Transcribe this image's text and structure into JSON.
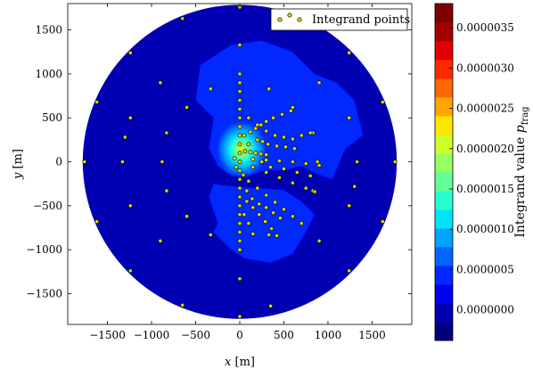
{
  "chart_data": {
    "type": "heatmap",
    "title": "",
    "xlabel": "x [m]",
    "ylabel": "y [m]",
    "xlim": [
      -1950,
      1950
    ],
    "ylim": [
      -1850,
      1800
    ],
    "x_ticks": [
      -1500,
      -1000,
      -500,
      0,
      500,
      1000,
      1500
    ],
    "x_tick_labels": [
      "−1500",
      "−1000",
      "−500",
      "0",
      "500",
      "1000",
      "1500"
    ],
    "y_ticks": [
      -1500,
      -1000,
      -500,
      0,
      500,
      1000,
      1500
    ],
    "y_tick_labels": [
      "−1500",
      "−1000",
      "−500",
      "0",
      "500",
      "1000",
      "1500"
    ],
    "domain_radius": 1780,
    "hotspot": {
      "x": 20,
      "y": 140
    },
    "legend": {
      "label": "Integrand points",
      "placement": "top-right"
    },
    "colorbar": {
      "label": "Integrand value p",
      "label_subscript": "frag",
      "range": [
        -3.8e-07,
        3.8e-06
      ],
      "ticks": [
        0.0,
        5e-07,
        1e-06,
        1.5e-06,
        2e-06,
        2.5e-06,
        3e-06,
        3.5e-06
      ],
      "tick_labels": [
        "0.0000000",
        "0.0000005",
        "0.0000010",
        "0.0000015",
        "0.0000020",
        "0.0000025",
        "0.0000030",
        "0.0000035"
      ],
      "colors": [
        "#00007f",
        "#0000b2",
        "#0000f1",
        "#0028ff",
        "#0066ff",
        "#00a4ff",
        "#00e4f8",
        "#29ffce",
        "#61ff96",
        "#96ff61",
        "#ceff29",
        "#ffe600",
        "#ffa700",
        "#ff6800",
        "#ff2900",
        "#e40000",
        "#a40000",
        "#7f0000"
      ]
    },
    "points": [
      [
        0,
        1760
      ],
      [
        0,
        1330
      ],
      [
        0,
        -1330
      ],
      [
        0,
        -1760
      ],
      [
        -650,
        1630
      ],
      [
        650,
        1630
      ],
      [
        -1240,
        1240
      ],
      [
        1240,
        1240
      ],
      [
        -1620,
        680
      ],
      [
        1620,
        680
      ],
      [
        -1760,
        0
      ],
      [
        1760,
        0
      ],
      [
        -1620,
        -680
      ],
      [
        1620,
        -680
      ],
      [
        -1240,
        -1240
      ],
      [
        1240,
        -1240
      ],
      [
        -650,
        -1630
      ],
      [
        350,
        -1640
      ],
      [
        -900,
        900
      ],
      [
        900,
        900
      ],
      [
        -1240,
        500
      ],
      [
        1240,
        500
      ],
      [
        -1330,
        0
      ],
      [
        1330,
        0
      ],
      [
        -1240,
        -500
      ],
      [
        1240,
        -500
      ],
      [
        -900,
        -900
      ],
      [
        900,
        -900
      ],
      [
        -600,
        620
      ],
      [
        600,
        620
      ],
      [
        -830,
        330
      ],
      [
        830,
        330
      ],
      [
        -880,
        0
      ],
      [
        880,
        0
      ],
      [
        -830,
        -330
      ],
      [
        830,
        -330
      ],
      [
        -600,
        -620
      ],
      [
        600,
        -620
      ],
      [
        -330,
        -830
      ],
      [
        330,
        -830
      ],
      [
        -330,
        830
      ],
      [
        330,
        830
      ],
      [
        -1300,
        280
      ],
      [
        1300,
        -280
      ],
      [
        0,
        1000
      ],
      [
        0,
        900
      ],
      [
        0,
        800
      ],
      [
        0,
        700
      ],
      [
        0,
        600
      ],
      [
        0,
        500
      ],
      [
        0,
        400
      ],
      [
        0,
        300
      ],
      [
        0,
        200
      ],
      [
        0,
        100
      ],
      [
        0,
        0
      ],
      [
        0,
        -100
      ],
      [
        0,
        -200
      ],
      [
        0,
        -300
      ],
      [
        0,
        -400
      ],
      [
        0,
        -500
      ],
      [
        0,
        -600
      ],
      [
        0,
        -700
      ],
      [
        0,
        -800
      ],
      [
        0,
        -900
      ],
      [
        0,
        -1000
      ],
      [
        60,
        120
      ],
      [
        120,
        110
      ],
      [
        180,
        100
      ],
      [
        240,
        90
      ],
      [
        300,
        80
      ],
      [
        100,
        500
      ],
      [
        200,
        420
      ],
      [
        300,
        350
      ],
      [
        400,
        300
      ],
      [
        500,
        280
      ],
      [
        600,
        260
      ],
      [
        700,
        300
      ],
      [
        800,
        330
      ],
      [
        50,
        300
      ],
      [
        120,
        340
      ],
      [
        180,
        380
      ],
      [
        240,
        420
      ],
      [
        300,
        460
      ],
      [
        380,
        500
      ],
      [
        480,
        540
      ],
      [
        580,
        580
      ],
      [
        150,
        30
      ],
      [
        300,
        20
      ],
      [
        450,
        10
      ],
      [
        600,
        0
      ],
      [
        750,
        -20
      ],
      [
        900,
        -40
      ],
      [
        150,
        -60
      ],
      [
        300,
        -120
      ],
      [
        450,
        -180
      ],
      [
        600,
        -240
      ],
      [
        750,
        -300
      ],
      [
        850,
        -340
      ],
      [
        100,
        -220
      ],
      [
        200,
        -300
      ],
      [
        300,
        -380
      ],
      [
        400,
        -460
      ],
      [
        500,
        -540
      ],
      [
        600,
        -620
      ],
      [
        700,
        -700
      ],
      [
        80,
        -450
      ],
      [
        150,
        -520
      ],
      [
        220,
        -600
      ],
      [
        290,
        -680
      ],
      [
        360,
        -760
      ],
      [
        420,
        -840
      ],
      [
        50,
        -600
      ],
      [
        100,
        -700
      ],
      [
        150,
        -820
      ],
      [
        250,
        0
      ],
      [
        350,
        -60
      ],
      [
        500,
        -80
      ],
      [
        650,
        -120
      ],
      [
        800,
        -160
      ],
      [
        100,
        200
      ],
      [
        200,
        250
      ],
      [
        260,
        230
      ],
      [
        320,
        200
      ],
      [
        420,
        180
      ],
      [
        520,
        170
      ],
      [
        620,
        150
      ],
      [
        -40,
        -60
      ],
      [
        -60,
        40
      ],
      [
        40,
        -150
      ],
      [
        80,
        -330
      ],
      [
        140,
        -420
      ],
      [
        220,
        -480
      ],
      [
        300,
        -520
      ],
      [
        380,
        -580
      ],
      [
        460,
        -640
      ]
    ]
  }
}
